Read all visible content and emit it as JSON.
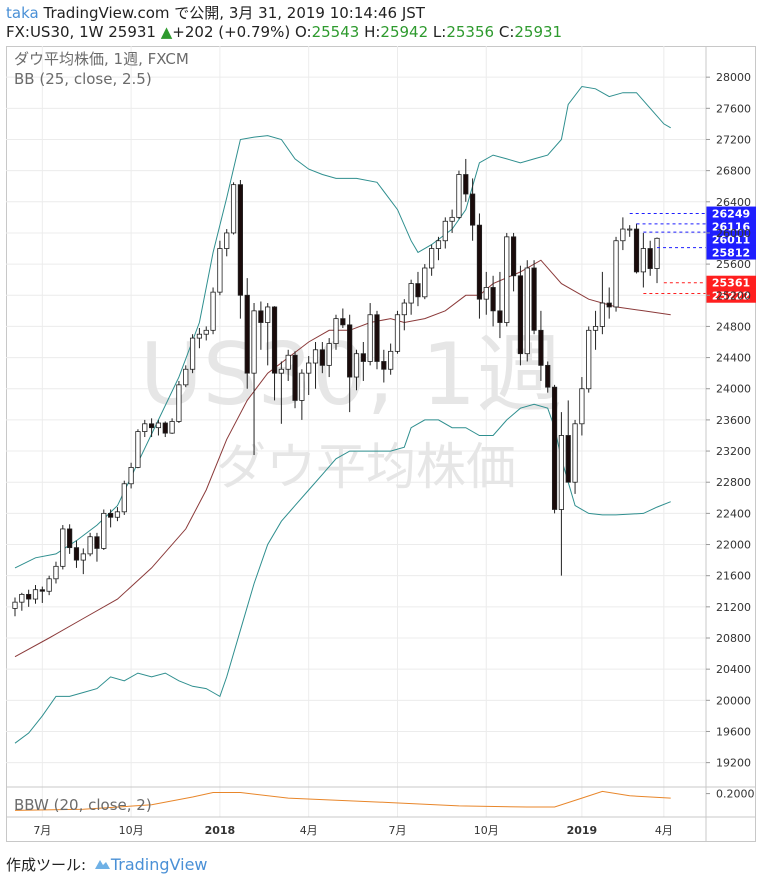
{
  "header": {
    "author": "taka",
    "line1_rest": "TradingView.com で公開, 3月 31, 2019 10:14:46 JST",
    "symbol": "FX:US30, 1W",
    "price": "25931",
    "change_arrow": "▲",
    "change": "+202 (+0.79%)",
    "open_label": "O:",
    "open": "25543",
    "high_label": "H:",
    "high": "25942",
    "low_label": "L:",
    "low": "25356",
    "close_label": "C:",
    "close": "25931"
  },
  "legend": {
    "line1": "ダウ平均株価, 1週, FXCM",
    "line2": "BB (25, close, 2.5)",
    "indicator": "BBW (20, close, 2)"
  },
  "watermark": {
    "line1": "US30, 1週",
    "line2": "ダウ平均株価"
  },
  "footer": {
    "label": "作成ツール:",
    "brand": "TradingView"
  },
  "colors": {
    "up_candle": "#ffffff",
    "down_candle": "#1a0b0b",
    "bb_band": "#2f8f8f",
    "bb_basis": "#8b3a3a",
    "bbw": "#e8862a",
    "label_blue": "#1f1fff",
    "label_red": "#ff1f1f",
    "grid": "#ececec"
  },
  "chart_data": {
    "type": "candlestick",
    "title": "ダウ平均株価, 1週, FXCM",
    "timeframe": "1W",
    "ylim": [
      18900,
      28400
    ],
    "y_ticks": [
      19200,
      19600,
      20000,
      20400,
      20800,
      21200,
      21600,
      22000,
      22400,
      22800,
      23200,
      23600,
      24000,
      24400,
      24800,
      25200,
      25600,
      26000,
      26400,
      26800,
      27200,
      27600,
      28000
    ],
    "x_tick_labels": [
      {
        "label": "7月",
        "bar": 4
      },
      {
        "label": "10月",
        "bar": 17
      },
      {
        "label": "2018",
        "bar": 30
      },
      {
        "label": "4月",
        "bar": 43
      },
      {
        "label": "7月",
        "bar": 56
      },
      {
        "label": "10月",
        "bar": 69
      },
      {
        "label": "2019",
        "bar": 83
      },
      {
        "label": "4月",
        "bar": 95
      }
    ],
    "ohlc": [
      [
        21180,
        21320,
        21080,
        21260
      ],
      [
        21260,
        21380,
        21150,
        21360
      ],
      [
        21360,
        21420,
        21200,
        21300
      ],
      [
        21300,
        21480,
        21240,
        21420
      ],
      [
        21420,
        21460,
        21250,
        21400
      ],
      [
        21400,
        21600,
        21350,
        21560
      ],
      [
        21560,
        21780,
        21500,
        21720
      ],
      [
        21720,
        22250,
        21680,
        22200
      ],
      [
        22200,
        22260,
        21880,
        21960
      ],
      [
        21960,
        22050,
        21700,
        21800
      ],
      [
        21800,
        21950,
        21620,
        21880
      ],
      [
        21880,
        22150,
        21850,
        22100
      ],
      [
        22100,
        22150,
        21780,
        21950
      ],
      [
        21950,
        22450,
        21930,
        22400
      ],
      [
        22400,
        22450,
        22220,
        22350
      ],
      [
        22350,
        22480,
        22300,
        22420
      ],
      [
        22420,
        22820,
        22380,
        22780
      ],
      [
        22780,
        23050,
        22720,
        22990
      ],
      [
        22990,
        23480,
        22980,
        23450
      ],
      [
        23450,
        23600,
        23380,
        23550
      ],
      [
        23550,
        23620,
        23380,
        23500
      ],
      [
        23500,
        23600,
        23400,
        23560
      ],
      [
        23560,
        23580,
        23380,
        23430
      ],
      [
        23430,
        23620,
        23420,
        23580
      ],
      [
        23580,
        24100,
        23560,
        24050
      ],
      [
        24050,
        24300,
        24020,
        24250
      ],
      [
        24250,
        24700,
        24200,
        24650
      ],
      [
        24650,
        24780,
        24520,
        24700
      ],
      [
        24700,
        24800,
        24620,
        24750
      ],
      [
        24750,
        25300,
        24700,
        25240
      ],
      [
        25240,
        25900,
        25200,
        25800
      ],
      [
        25800,
        26050,
        25700,
        26000
      ],
      [
        26000,
        26650,
        25980,
        26620
      ],
      [
        26620,
        26680,
        24900,
        25200
      ],
      [
        25200,
        25420,
        24000,
        24200
      ],
      [
        24200,
        25100,
        23150,
        25000
      ],
      [
        25000,
        25120,
        24500,
        24850
      ],
      [
        24850,
        25100,
        24300,
        25050
      ],
      [
        25050,
        25060,
        23850,
        24200
      ],
      [
        24200,
        24350,
        23550,
        24250
      ],
      [
        24250,
        24500,
        24100,
        24430
      ],
      [
        24430,
        24480,
        23750,
        23850
      ],
      [
        23850,
        24250,
        23600,
        24200
      ],
      [
        24200,
        24420,
        23920,
        24330
      ],
      [
        24330,
        24600,
        24000,
        24500
      ],
      [
        24500,
        24600,
        24200,
        24300
      ],
      [
        24300,
        24650,
        24150,
        24580
      ],
      [
        24580,
        24950,
        24500,
        24900
      ],
      [
        24900,
        25030,
        24780,
        24820
      ],
      [
        24820,
        24950,
        23700,
        24150
      ],
      [
        24150,
        24500,
        23980,
        24450
      ],
      [
        24450,
        24600,
        24100,
        24350
      ],
      [
        24350,
        25100,
        24300,
        24950
      ],
      [
        24950,
        25000,
        24250,
        24350
      ],
      [
        24350,
        24500,
        24080,
        24250
      ],
      [
        24250,
        24580,
        24180,
        24480
      ],
      [
        24480,
        25000,
        24450,
        24950
      ],
      [
        24950,
        25150,
        24750,
        25100
      ],
      [
        25100,
        25400,
        24950,
        25350
      ],
      [
        25350,
        25500,
        25060,
        25180
      ],
      [
        25180,
        25600,
        25150,
        25550
      ],
      [
        25550,
        25850,
        25450,
        25800
      ],
      [
        25800,
        25950,
        25650,
        25900
      ],
      [
        25900,
        26200,
        25800,
        26150
      ],
      [
        26150,
        26300,
        26000,
        26200
      ],
      [
        26200,
        26800,
        26180,
        26750
      ],
      [
        26750,
        26950,
        26400,
        26500
      ],
      [
        26500,
        26700,
        25900,
        26100
      ],
      [
        26100,
        26250,
        24900,
        25150
      ],
      [
        25150,
        25500,
        24950,
        25300
      ],
      [
        25300,
        25450,
        24800,
        25000
      ],
      [
        25000,
        25500,
        24650,
        24850
      ],
      [
        24850,
        26000,
        24800,
        25950
      ],
      [
        25950,
        26000,
        25250,
        25450
      ],
      [
        25450,
        25580,
        24300,
        24450
      ],
      [
        24450,
        25650,
        24350,
        25550
      ],
      [
        25550,
        25650,
        24700,
        24750
      ],
      [
        24750,
        25000,
        24100,
        24300
      ],
      [
        24300,
        24350,
        23950,
        24020
      ],
      [
        24020,
        24050,
        22400,
        22450
      ],
      [
        22450,
        23700,
        21600,
        23400
      ],
      [
        23400,
        23850,
        22800,
        22800
      ],
      [
        22800,
        23600,
        22650,
        23550
      ],
      [
        23550,
        24150,
        23400,
        24000
      ],
      [
        24000,
        24800,
        23950,
        24750
      ],
      [
        24750,
        25000,
        24500,
        24800
      ],
      [
        24800,
        25500,
        24700,
        25100
      ],
      [
        25100,
        25300,
        24900,
        25050
      ],
      [
        25050,
        25950,
        24990,
        25900
      ],
      [
        25900,
        26200,
        25780,
        26050
      ],
      [
        26050,
        26100,
        25950,
        26050
      ],
      [
        26050,
        26120,
        25480,
        25500
      ],
      [
        25500,
        26000,
        25300,
        25800
      ],
      [
        25800,
        25900,
        25450,
        25543
      ],
      [
        25543,
        25942,
        25356,
        25931
      ]
    ],
    "bb_basis": [
      [
        0,
        20560
      ],
      [
        5,
        20800
      ],
      [
        10,
        21050
      ],
      [
        15,
        21300
      ],
      [
        20,
        21700
      ],
      [
        25,
        22200
      ],
      [
        28,
        22700
      ],
      [
        31,
        23350
      ],
      [
        34,
        23850
      ],
      [
        37,
        24200
      ],
      [
        40,
        24400
      ],
      [
        43,
        24600
      ],
      [
        46,
        24750
      ],
      [
        49,
        24750
      ],
      [
        52,
        24850
      ],
      [
        55,
        24900
      ],
      [
        57,
        24850
      ],
      [
        60,
        24900
      ],
      [
        63,
        25000
      ],
      [
        66,
        25200
      ],
      [
        68,
        25200
      ],
      [
        70,
        25350
      ],
      [
        74,
        25500
      ],
      [
        77,
        25650
      ],
      [
        80,
        25350
      ],
      [
        84,
        25150
      ],
      [
        88,
        25050
      ],
      [
        92,
        25000
      ],
      [
        96,
        24950
      ]
    ],
    "bb_upper": [
      [
        0,
        21700
      ],
      [
        3,
        21830
      ],
      [
        6,
        21880
      ],
      [
        9,
        22050
      ],
      [
        12,
        22250
      ],
      [
        15,
        22500
      ],
      [
        18,
        23050
      ],
      [
        21,
        23600
      ],
      [
        24,
        24150
      ],
      [
        27,
        24850
      ],
      [
        29,
        25750
      ],
      [
        31,
        26450
      ],
      [
        33,
        27200
      ],
      [
        35,
        27230
      ],
      [
        37,
        27250
      ],
      [
        39,
        27200
      ],
      [
        41,
        26950
      ],
      [
        43,
        26820
      ],
      [
        45,
        26750
      ],
      [
        47,
        26700
      ],
      [
        50,
        26700
      ],
      [
        53,
        26650
      ],
      [
        56,
        26300
      ],
      [
        58,
        25900
      ],
      [
        59,
        25750
      ],
      [
        61,
        25850
      ],
      [
        64,
        26050
      ],
      [
        66,
        26300
      ],
      [
        68,
        26900
      ],
      [
        70,
        27000
      ],
      [
        72,
        26950
      ],
      [
        74,
        26900
      ],
      [
        76,
        26950
      ],
      [
        78,
        27000
      ],
      [
        80,
        27200
      ],
      [
        81,
        27650
      ],
      [
        83,
        27880
      ],
      [
        85,
        27850
      ],
      [
        87,
        27750
      ],
      [
        89,
        27800
      ],
      [
        91,
        27800
      ],
      [
        93,
        27600
      ],
      [
        95,
        27400
      ],
      [
        96,
        27350
      ]
    ],
    "bb_lower": [
      [
        0,
        19450
      ],
      [
        2,
        19580
      ],
      [
        4,
        19800
      ],
      [
        6,
        20050
      ],
      [
        8,
        20050
      ],
      [
        10,
        20100
      ],
      [
        12,
        20150
      ],
      [
        14,
        20300
      ],
      [
        16,
        20250
      ],
      [
        18,
        20350
      ],
      [
        20,
        20300
      ],
      [
        22,
        20350
      ],
      [
        24,
        20250
      ],
      [
        26,
        20180
      ],
      [
        28,
        20150
      ],
      [
        29,
        20100
      ],
      [
        30,
        20050
      ],
      [
        31,
        20300
      ],
      [
        33,
        20900
      ],
      [
        35,
        21500
      ],
      [
        37,
        22000
      ],
      [
        39,
        22300
      ],
      [
        41,
        22500
      ],
      [
        43,
        22700
      ],
      [
        45,
        22900
      ],
      [
        47,
        23100
      ],
      [
        49,
        23200
      ],
      [
        51,
        23200
      ],
      [
        53,
        23200
      ],
      [
        55,
        23200
      ],
      [
        57,
        23250
      ],
      [
        58,
        23500
      ],
      [
        60,
        23600
      ],
      [
        62,
        23600
      ],
      [
        64,
        23500
      ],
      [
        66,
        23500
      ],
      [
        68,
        23400
      ],
      [
        70,
        23400
      ],
      [
        72,
        23600
      ],
      [
        74,
        23750
      ],
      [
        76,
        23800
      ],
      [
        78,
        23750
      ],
      [
        79,
        23500
      ],
      [
        80,
        23100
      ],
      [
        81,
        22800
      ],
      [
        82,
        22500
      ],
      [
        84,
        22400
      ],
      [
        86,
        22380
      ],
      [
        88,
        22380
      ],
      [
        90,
        22390
      ],
      [
        92,
        22400
      ],
      [
        94,
        22480
      ],
      [
        96,
        22550
      ]
    ],
    "bbw": {
      "ylim": [
        0,
        0.25
      ],
      "tick": 0.2,
      "tick_label": "0.2000",
      "points": [
        [
          0,
          0.05
        ],
        [
          10,
          0.06
        ],
        [
          20,
          0.1
        ],
        [
          26,
          0.17
        ],
        [
          29,
          0.21
        ],
        [
          33,
          0.21
        ],
        [
          40,
          0.16
        ],
        [
          55,
          0.12
        ],
        [
          65,
          0.09
        ],
        [
          75,
          0.08
        ],
        [
          79,
          0.08
        ],
        [
          83,
          0.16
        ],
        [
          86,
          0.22
        ],
        [
          90,
          0.18
        ],
        [
          96,
          0.16
        ]
      ]
    },
    "price_labels": [
      {
        "value": 26249,
        "text": "26249",
        "color": "blue",
        "from_bar": 90
      },
      {
        "value": 26116,
        "text": "26116",
        "color": "blue",
        "from_bar": 91
      },
      {
        "value": 26011,
        "text": "26011",
        "color": "blue",
        "from_bar": 92
      },
      {
        "value": 25812,
        "text": "25812",
        "color": "blue",
        "from_bar": 94
      },
      {
        "value": 25361,
        "text": "25361",
        "color": "red",
        "from_bar": 95
      },
      {
        "value": 25222,
        "text": "25222",
        "color": "red",
        "from_bar": 92
      }
    ]
  }
}
